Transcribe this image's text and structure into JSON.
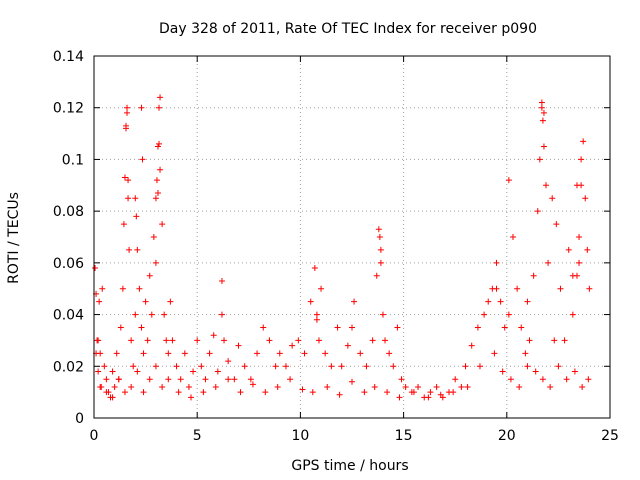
{
  "chart_data": {
    "type": "scatter",
    "title": "Day 328 of 2011, Rate Of TEC Index for receiver p090",
    "xlabel": "GPS time / hours",
    "ylabel": "ROTI / TECUs",
    "xlim": [
      0,
      25
    ],
    "ylim": [
      0,
      0.14
    ],
    "x_ticks": [
      "0",
      "5",
      "10",
      "15",
      "20",
      "25"
    ],
    "y_ticks": [
      "0",
      "0.02",
      "0.04",
      "0.06",
      "0.08",
      "0.1",
      "0.12",
      "0.14"
    ],
    "x_tick_values": [
      0,
      5,
      10,
      15,
      20,
      25
    ],
    "y_tick_values": [
      0,
      0.02,
      0.04,
      0.06,
      0.08,
      0.1,
      0.12,
      0.14
    ],
    "grid": true,
    "marker": "+",
    "series_color": "#ff0000",
    "x": [
      0.05,
      0.1,
      0.15,
      0.2,
      0.25,
      0.3,
      0.35,
      0.4,
      0.5,
      0.6,
      0.7,
      0.8,
      0.9,
      1.0,
      1.1,
      1.2,
      1.3,
      1.4,
      1.45,
      1.5,
      1.55,
      1.6,
      1.65,
      1.7,
      1.8,
      1.9,
      2.0,
      2.1,
      2.2,
      2.3,
      2.4,
      2.5,
      2.6,
      2.7,
      2.8,
      2.9,
      3.0,
      3.05,
      3.1,
      3.15,
      3.2,
      3.3,
      3.4,
      3.5,
      3.6,
      3.7,
      3.8,
      4.0,
      4.2,
      4.4,
      4.6,
      4.8,
      5.0,
      5.2,
      5.4,
      5.6,
      5.8,
      6.0,
      6.2,
      6.3,
      6.5,
      6.8,
      7.0,
      7.3,
      7.6,
      7.9,
      8.2,
      8.5,
      8.8,
      9.0,
      9.3,
      9.6,
      9.9,
      10.2,
      10.5,
      10.7,
      10.8,
      10.9,
      11.0,
      11.2,
      11.5,
      11.8,
      12.0,
      12.3,
      12.6,
      12.9,
      13.2,
      13.5,
      13.7,
      13.8,
      13.9,
      14.0,
      14.1,
      14.3,
      14.5,
      14.7,
      14.9,
      15.1,
      15.4,
      15.7,
      16.0,
      16.3,
      16.6,
      16.9,
      17.2,
      17.5,
      17.8,
      18.0,
      18.3,
      18.6,
      18.9,
      19.1,
      19.3,
      19.5,
      19.7,
      19.9,
      20.1,
      20.3,
      20.5,
      20.7,
      20.9,
      21.1,
      21.3,
      21.5,
      21.6,
      21.7,
      21.8,
      21.9,
      22.0,
      22.2,
      22.4,
      22.6,
      22.8,
      23.0,
      23.2,
      23.4,
      23.5,
      23.6,
      23.7,
      23.8,
      23.9,
      24.0,
      0.3,
      0.6,
      0.9,
      1.2,
      1.5,
      1.8,
      2.1,
      2.4,
      2.7,
      3.0,
      3.3,
      3.6,
      4.1,
      4.7,
      5.3,
      5.9,
      6.5,
      7.1,
      7.7,
      8.3,
      8.9,
      9.5,
      10.1,
      10.6,
      11.3,
      11.9,
      12.5,
      13.1,
      13.6,
      14.2,
      14.8,
      15.5,
      16.2,
      16.8,
      17.4,
      18.1,
      18.7,
      19.4,
      19.8,
      20.2,
      20.6,
      21.0,
      21.4,
      21.75,
      22.1,
      22.5,
      22.9,
      23.3,
      23.65,
      23.95,
      1.55,
      1.6,
      1.65,
      2.3,
      2.35,
      3.15,
      3.2,
      3.1,
      21.7,
      21.75,
      21.8,
      23.4,
      23.6,
      2.0,
      2.05,
      3.0,
      13.85,
      13.9,
      19.5,
      20.1,
      21.0,
      22.3,
      23.2,
      23.5,
      0.1,
      0.2,
      10.8,
      6.2,
      12.5
    ],
    "y": [
      0.058,
      0.048,
      0.03,
      0.018,
      0.045,
      0.025,
      0.012,
      0.05,
      0.02,
      0.015,
      0.01,
      0.008,
      0.018,
      0.012,
      0.025,
      0.015,
      0.035,
      0.05,
      0.075,
      0.093,
      0.112,
      0.12,
      0.085,
      0.065,
      0.03,
      0.02,
      0.04,
      0.065,
      0.05,
      0.035,
      0.025,
      0.045,
      0.03,
      0.055,
      0.04,
      0.07,
      0.085,
      0.092,
      0.105,
      0.12,
      0.124,
      0.075,
      0.04,
      0.03,
      0.025,
      0.045,
      0.03,
      0.02,
      0.015,
      0.025,
      0.012,
      0.018,
      0.03,
      0.02,
      0.015,
      0.025,
      0.032,
      0.018,
      0.053,
      0.03,
      0.022,
      0.015,
      0.028,
      0.02,
      0.015,
      0.025,
      0.035,
      0.03,
      0.02,
      0.025,
      0.02,
      0.028,
      0.03,
      0.025,
      0.045,
      0.058,
      0.04,
      0.03,
      0.05,
      0.025,
      0.02,
      0.035,
      0.02,
      0.028,
      0.045,
      0.025,
      0.02,
      0.03,
      0.055,
      0.073,
      0.065,
      0.04,
      0.03,
      0.025,
      0.02,
      0.035,
      0.015,
      0.012,
      0.01,
      0.012,
      0.008,
      0.01,
      0.012,
      0.008,
      0.01,
      0.015,
      0.012,
      0.02,
      0.028,
      0.035,
      0.04,
      0.045,
      0.05,
      0.06,
      0.045,
      0.035,
      0.092,
      0.07,
      0.05,
      0.035,
      0.025,
      0.03,
      0.055,
      0.08,
      0.1,
      0.122,
      0.118,
      0.09,
      0.06,
      0.085,
      0.075,
      0.05,
      0.03,
      0.065,
      0.04,
      0.055,
      0.07,
      0.09,
      0.107,
      0.085,
      0.065,
      0.05,
      0.012,
      0.01,
      0.008,
      0.015,
      0.01,
      0.012,
      0.018,
      0.01,
      0.015,
      0.02,
      0.012,
      0.015,
      0.01,
      0.008,
      0.01,
      0.012,
      0.015,
      0.01,
      0.013,
      0.01,
      0.012,
      0.015,
      0.011,
      0.01,
      0.012,
      0.009,
      0.014,
      0.01,
      0.012,
      0.01,
      0.008,
      0.01,
      0.008,
      0.009,
      0.01,
      0.012,
      0.02,
      0.025,
      0.018,
      0.015,
      0.012,
      0.02,
      0.018,
      0.015,
      0.012,
      0.02,
      0.015,
      0.018,
      0.012,
      0.015,
      0.113,
      0.118,
      0.092,
      0.12,
      0.1,
      0.106,
      0.096,
      0.087,
      0.12,
      0.115,
      0.105,
      0.09,
      0.1,
      0.085,
      0.078,
      0.06,
      0.07,
      0.06,
      0.05,
      0.04,
      0.045,
      0.03,
      0.055,
      0.06,
      0.025,
      0.03,
      0.038,
      0.04,
      0.035
    ],
    "series": [
      {
        "name": "",
        "color": "#ff0000"
      }
    ]
  }
}
